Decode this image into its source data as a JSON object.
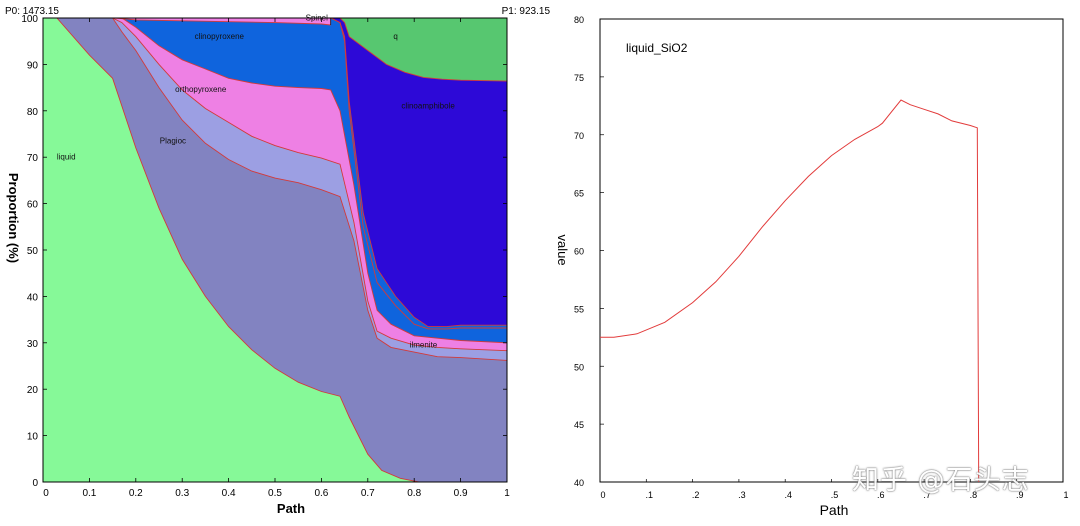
{
  "chart_data": [
    {
      "type": "area",
      "title": "",
      "xlabel": "Path",
      "ylabel": "Proportion (%)",
      "xlim": [
        0,
        1
      ],
      "ylim": [
        0,
        100
      ],
      "x_ticks": [
        "0",
        "0.1",
        "0.2",
        "0.3",
        "0.4",
        "0.5",
        "0.6",
        "0.7",
        "0.8",
        "0.9",
        "1"
      ],
      "y_ticks": [
        "0",
        "10",
        "20",
        "30",
        "40",
        "50",
        "60",
        "70",
        "80",
        "90",
        "100"
      ],
      "corner_left": "P0: 1473.15",
      "corner_right": "P1: 923.15",
      "series": [
        {
          "name": "liquid",
          "label": "liquid",
          "color": "#86f998",
          "upper": [
            [
              0,
              100
            ],
            [
              0.03,
              100
            ],
            [
              0.1,
              92
            ],
            [
              0.15,
              87
            ],
            [
              0.2,
              72
            ],
            [
              0.25,
              59
            ],
            [
              0.3,
              48
            ],
            [
              0.35,
              40
            ],
            [
              0.4,
              33.5
            ],
            [
              0.45,
              28.5
            ],
            [
              0.5,
              24.5
            ],
            [
              0.55,
              21.5
            ],
            [
              0.6,
              19.5
            ],
            [
              0.64,
              18.5
            ],
            [
              0.66,
              14
            ],
            [
              0.7,
              6
            ],
            [
              0.73,
              2.5
            ],
            [
              0.77,
              0.8
            ],
            [
              0.81,
              0
            ],
            [
              1,
              0
            ]
          ]
        },
        {
          "name": "Plagioclase",
          "label": "Plagioc",
          "color": "#8283c1",
          "upper": [
            [
              0,
              100
            ],
            [
              0.07,
              100
            ],
            [
              0.15,
              100
            ],
            [
              0.17,
              97
            ],
            [
              0.2,
              93
            ],
            [
              0.25,
              85
            ],
            [
              0.3,
              78
            ],
            [
              0.35,
              73
            ],
            [
              0.4,
              69.5
            ],
            [
              0.45,
              67
            ],
            [
              0.5,
              65.5
            ],
            [
              0.55,
              64.5
            ],
            [
              0.6,
              63
            ],
            [
              0.64,
              61.5
            ],
            [
              0.67,
              52
            ],
            [
              0.7,
              37
            ],
            [
              0.72,
              31
            ],
            [
              0.75,
              29
            ],
            [
              0.8,
              28
            ],
            [
              0.85,
              27
            ],
            [
              0.9,
              26.8
            ],
            [
              1,
              26.2
            ]
          ]
        },
        {
          "name": "ilmenite",
          "label": "ilmenite",
          "color": "#9c9fe3",
          "upper": [
            [
              0,
              100
            ],
            [
              0.15,
              100
            ],
            [
              0.17,
              99
            ],
            [
              0.2,
              96
            ],
            [
              0.25,
              90
            ],
            [
              0.3,
              84.5
            ],
            [
              0.35,
              80.5
            ],
            [
              0.4,
              77.5
            ],
            [
              0.45,
              74.5
            ],
            [
              0.5,
              72.5
            ],
            [
              0.55,
              71
            ],
            [
              0.6,
              69.8
            ],
            [
              0.64,
              68.5
            ],
            [
              0.67,
              56
            ],
            [
              0.7,
              39
            ],
            [
              0.72,
              32.5
            ],
            [
              0.75,
              31
            ],
            [
              0.8,
              29.5
            ],
            [
              0.85,
              29
            ],
            [
              0.9,
              28.7
            ],
            [
              1,
              28.3
            ]
          ]
        },
        {
          "name": "orthopyroxene",
          "label": "orthopyroxene",
          "color": "#ee80e4",
          "upper": [
            [
              0,
              100
            ],
            [
              0.17,
              100
            ],
            [
              0.2,
              98
            ],
            [
              0.25,
              94
            ],
            [
              0.3,
              91
            ],
            [
              0.35,
              89
            ],
            [
              0.4,
              87
            ],
            [
              0.45,
              86
            ],
            [
              0.5,
              85.3
            ],
            [
              0.55,
              85
            ],
            [
              0.6,
              84.8
            ],
            [
              0.62,
              84.5
            ],
            [
              0.64,
              80
            ],
            [
              0.67,
              64
            ],
            [
              0.7,
              45
            ],
            [
              0.72,
              37
            ],
            [
              0.75,
              34
            ],
            [
              0.8,
              31.5
            ],
            [
              0.85,
              31
            ],
            [
              0.9,
              30.5
            ],
            [
              1,
              30
            ]
          ]
        },
        {
          "name": "clinopyroxene",
          "label": "clinopyroxene",
          "color": "#0f64dd",
          "upper": [
            [
              0,
              100
            ],
            [
              0.58,
              100
            ],
            [
              0.62,
              100
            ],
            [
              0.64,
              99
            ],
            [
              0.65,
              95
            ],
            [
              0.66,
              80
            ],
            [
              0.69,
              55
            ],
            [
              0.72,
              43
            ],
            [
              0.76,
              38
            ],
            [
              0.8,
              34
            ],
            [
              0.83,
              33
            ],
            [
              0.87,
              33
            ],
            [
              0.9,
              33.2
            ],
            [
              1,
              33.2
            ]
          ]
        },
        {
          "name": "Spinel",
          "label": "Spinel",
          "color": "#ee80e4",
          "upper": [
            [
              0,
              100
            ],
            [
              1,
              100
            ]
          ]
        },
        {
          "name": "clinoamphibole",
          "label": "clinoamphibole",
          "color": "#2d09d7",
          "upper": [
            [
              0,
              100
            ],
            [
              1,
              100
            ]
          ]
        },
        {
          "name": "q",
          "label": "q",
          "color": "#57c770",
          "upper": [
            [
              0,
              100
            ],
            [
              1,
              100
            ]
          ]
        }
      ],
      "boundaries": {
        "spinel_lower": [
          [
            0.155,
            100
          ],
          [
            0.2,
            99.6
          ],
          [
            0.3,
            99.4
          ],
          [
            0.4,
            99.2
          ],
          [
            0.5,
            99
          ],
          [
            0.6,
            98.7
          ],
          [
            0.62,
            98.5
          ]
        ],
        "spinel_upper": [
          [
            0.155,
            100
          ],
          [
            0.62,
            100
          ]
        ],
        "clinoamphibole_lower": [
          [
            0.62,
            100
          ],
          [
            0.64,
            99
          ],
          [
            0.65,
            96
          ],
          [
            0.66,
            82
          ],
          [
            0.69,
            58
          ],
          [
            0.72,
            46
          ],
          [
            0.76,
            40
          ],
          [
            0.8,
            35.5
          ],
          [
            0.83,
            33.5
          ],
          [
            0.87,
            33.5
          ],
          [
            0.9,
            33.8
          ],
          [
            1,
            33.8
          ]
        ],
        "clinoamphibole_upper": [
          [
            0.62,
            100
          ],
          [
            0.64,
            100
          ],
          [
            0.65,
            99
          ],
          [
            0.66,
            96
          ],
          [
            0.7,
            93
          ],
          [
            0.74,
            90
          ],
          [
            0.78,
            88.3
          ],
          [
            0.82,
            87.2
          ],
          [
            0.86,
            86.8
          ],
          [
            0.9,
            86.6
          ],
          [
            1,
            86.4
          ]
        ],
        "q_lower": [
          [
            0.64,
            100
          ],
          [
            0.65,
            99
          ],
          [
            0.66,
            96
          ],
          [
            0.7,
            93
          ],
          [
            0.74,
            90
          ],
          [
            0.78,
            88.3
          ],
          [
            0.82,
            87.2
          ],
          [
            0.86,
            86.8
          ],
          [
            0.9,
            86.6
          ],
          [
            1,
            86.4
          ]
        ]
      },
      "annotations": [
        {
          "text": "clinopyroxene",
          "x": 0.38,
          "y": 95.5
        },
        {
          "text": "Spinel",
          "x": 0.59,
          "y": 99.5
        },
        {
          "text": "q",
          "x": 0.76,
          "y": 95.5
        },
        {
          "text": "orthopyroxene",
          "x": 0.34,
          "y": 84
        },
        {
          "text": "clinoamphibole",
          "x": 0.83,
          "y": 80.5
        },
        {
          "text": "Plagioc",
          "x": 0.28,
          "y": 73
        },
        {
          "text": "liquid",
          "x": 0.05,
          "y": 69.5
        },
        {
          "text": "ilmenite",
          "x": 0.82,
          "y": 29
        }
      ]
    },
    {
      "type": "line",
      "title": "liquid_SiO2",
      "xlabel": "Path",
      "ylabel": "value",
      "xlim": [
        0,
        1
      ],
      "ylim": [
        40,
        80
      ],
      "x_ticks": [
        "0",
        ".1",
        ".2",
        ".3",
        ".4",
        ".5",
        ".6",
        ".7",
        ".8",
        ".9",
        "1"
      ],
      "y_ticks": [
        "40",
        "45",
        "50",
        "55",
        "60",
        "65",
        "70",
        "75",
        "80"
      ],
      "series": [
        {
          "name": "liquid_SiO2",
          "color": "#e23b3b",
          "points": [
            [
              0,
              52.5
            ],
            [
              0.03,
              52.5
            ],
            [
              0.08,
              52.8
            ],
            [
              0.14,
              53.8
            ],
            [
              0.2,
              55.5
            ],
            [
              0.25,
              57.3
            ],
            [
              0.3,
              59.5
            ],
            [
              0.35,
              62
            ],
            [
              0.4,
              64.3
            ],
            [
              0.45,
              66.4
            ],
            [
              0.5,
              68.2
            ],
            [
              0.55,
              69.6
            ],
            [
              0.6,
              70.7
            ],
            [
              0.61,
              71
            ],
            [
              0.65,
              73
            ],
            [
              0.67,
              72.6
            ],
            [
              0.7,
              72.2
            ],
            [
              0.73,
              71.8
            ],
            [
              0.76,
              71.2
            ],
            [
              0.8,
              70.8
            ],
            [
              0.815,
              70.6
            ],
            [
              0.818,
              40
            ]
          ]
        }
      ]
    }
  ],
  "watermark": "知乎 @石头志"
}
